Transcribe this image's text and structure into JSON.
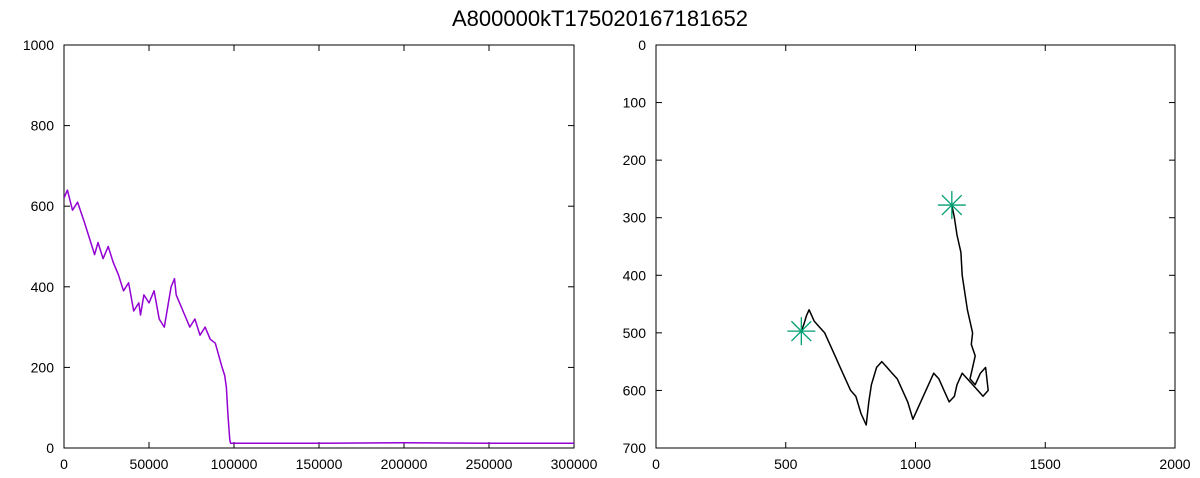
{
  "title": "A800000kT175020167181652",
  "chart_data": [
    {
      "type": "line",
      "xlim": [
        0,
        300000
      ],
      "ylim": [
        0,
        1000
      ],
      "xticks": [
        0,
        50000,
        100000,
        150000,
        200000,
        250000,
        300000
      ],
      "yticks": [
        0,
        200,
        400,
        600,
        800,
        1000
      ],
      "xtick_labels": [
        "0",
        "50000",
        "100000",
        "150000",
        "200000",
        "250000",
        "300000"
      ],
      "ytick_labels": [
        "0",
        "200",
        "400",
        "600",
        "800",
        "1000"
      ],
      "grid": false,
      "color": "#9400d3",
      "series": [
        {
          "x": [
            0,
            2000,
            5000,
            8000,
            12000,
            15000,
            18000,
            20000,
            23000,
            26000,
            29000,
            32000,
            35000,
            38000,
            41000,
            44000,
            45000,
            47000,
            50000,
            53000,
            56000,
            59000,
            61000,
            63000,
            65000,
            66000,
            68000,
            71000,
            74000,
            77000,
            80000,
            83000,
            86000,
            89000,
            91000,
            93000,
            94500,
            95500,
            96500,
            97500,
            98000,
            100000,
            150000,
            200000,
            250000,
            300000
          ],
          "y": [
            620,
            640,
            590,
            610,
            560,
            520,
            480,
            510,
            470,
            500,
            460,
            430,
            390,
            410,
            340,
            360,
            330,
            380,
            360,
            390,
            320,
            300,
            350,
            400,
            420,
            380,
            360,
            330,
            300,
            320,
            280,
            300,
            270,
            260,
            230,
            200,
            180,
            150,
            80,
            20,
            12,
            12,
            12,
            13,
            12,
            12
          ]
        }
      ]
    },
    {
      "type": "scatter",
      "xlim": [
        0,
        2000
      ],
      "ylim": [
        0,
        700
      ],
      "y_inverted": true,
      "xticks": [
        0,
        500,
        1000,
        1500,
        2000
      ],
      "yticks": [
        0,
        100,
        200,
        300,
        400,
        500,
        600,
        700
      ],
      "xtick_labels": [
        "0",
        "500",
        "1000",
        "1500",
        "2000"
      ],
      "ytick_labels": [
        "0",
        "100",
        "200",
        "300",
        "400",
        "500",
        "600",
        "700"
      ],
      "grid": false,
      "path_color": "#000000",
      "marker_color": "#009e73",
      "markers": [
        {
          "x": 1140,
          "y": 278
        },
        {
          "x": 560,
          "y": 497
        }
      ],
      "series": [
        {
          "x": [
            1140,
            1150,
            1160,
            1175,
            1180,
            1190,
            1200,
            1210,
            1220,
            1215,
            1230,
            1220,
            1210,
            1230,
            1250,
            1270,
            1280,
            1260,
            1240,
            1200,
            1180,
            1160,
            1150,
            1130,
            1110,
            1090,
            1070,
            1050,
            1030,
            1010,
            990,
            970,
            950,
            930,
            910,
            890,
            870,
            850,
            830,
            820,
            810,
            790,
            770,
            750,
            730,
            710,
            690,
            670,
            650,
            630,
            610,
            600,
            590,
            580,
            570,
            560
          ],
          "y": [
            278,
            300,
            330,
            360,
            400,
            430,
            460,
            480,
            500,
            520,
            540,
            560,
            580,
            590,
            570,
            560,
            600,
            610,
            600,
            580,
            570,
            590,
            610,
            620,
            600,
            580,
            570,
            590,
            610,
            630,
            650,
            620,
            600,
            580,
            570,
            560,
            550,
            560,
            590,
            620,
            660,
            640,
            610,
            600,
            580,
            560,
            540,
            520,
            500,
            490,
            480,
            470,
            460,
            470,
            485,
            497
          ]
        }
      ]
    }
  ]
}
